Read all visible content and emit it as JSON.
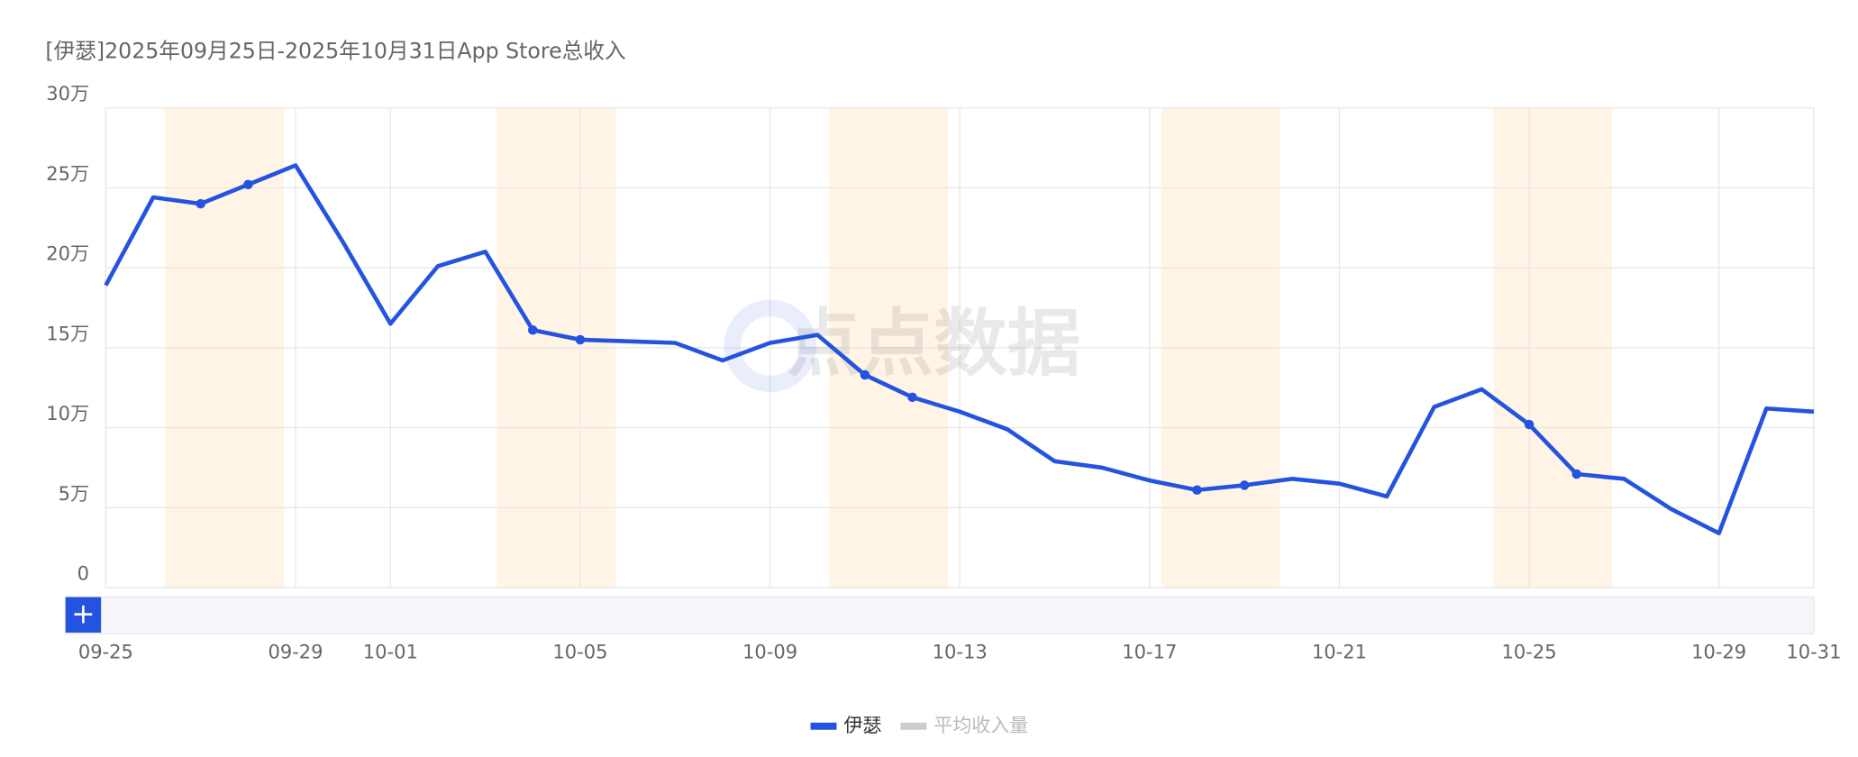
{
  "chart_data": {
    "type": "line",
    "title": "[伊瑟]2025年09月25日-2025年10月31日App Store总收入",
    "watermark": "点点数据",
    "categories": [
      "09-25",
      null,
      null,
      null,
      "09-29",
      null,
      "10-01",
      null,
      null,
      null,
      "10-05",
      null,
      null,
      null,
      "10-09",
      null,
      null,
      null,
      "10-13",
      null,
      null,
      null,
      "10-17",
      null,
      null,
      null,
      "10-21",
      null,
      null,
      null,
      "10-25",
      null,
      null,
      null,
      "10-29",
      null,
      "10-31"
    ],
    "series": [
      {
        "name": "伊瑟",
        "color": "#2453e0",
        "values": [
          189000,
          244000,
          240000,
          252000,
          264000,
          216000,
          165000,
          201000,
          210000,
          161000,
          155000,
          154000,
          153000,
          142000,
          153000,
          158000,
          133000,
          119000,
          110000,
          99000,
          79000,
          75000,
          67000,
          61000,
          64000,
          68000,
          65000,
          57000,
          113000,
          124000,
          102000,
          71000,
          68000,
          49000,
          34000,
          112000,
          110000
        ]
      },
      {
        "name": "平均收入量",
        "color": "#cccccc",
        "hidden": true
      }
    ],
    "ylim": [
      0,
      300000
    ],
    "yticks": [
      {
        "value": 0,
        "label": "0"
      },
      {
        "value": 50000,
        "label": "5万"
      },
      {
        "value": 100000,
        "label": "10万"
      },
      {
        "value": 150000,
        "label": "15万"
      },
      {
        "value": 200000,
        "label": "20万"
      },
      {
        "value": 250000,
        "label": "25万"
      },
      {
        "value": 300000,
        "label": "30万"
      }
    ],
    "grid": true
  }
}
